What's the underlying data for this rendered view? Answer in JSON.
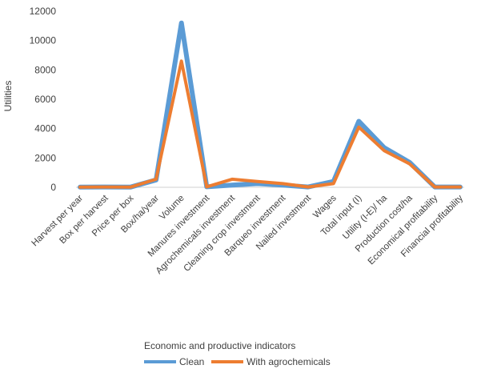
{
  "chart_data": {
    "type": "line",
    "title": "",
    "xlabel": "Economic and productive indicators",
    "ylabel": "Utilities",
    "ylim": [
      0,
      12000
    ],
    "yticks": [
      "0",
      "2000",
      "4000",
      "6000",
      "8000",
      "10000",
      "12000"
    ],
    "categories": [
      "Harvest per year",
      "Box per harvest",
      "Price per box",
      "Box/ha/year",
      "Volume",
      "Manures investment",
      "Agrochemicals investment",
      "Cleaning crop investment",
      "Barqueo investment",
      "Nailed investment",
      "Wages",
      "Total input (I)",
      "Utility (I-E)/ ha",
      "Production cost/ha",
      "Economical profitability",
      "Financial profitability"
    ],
    "series": [
      {
        "name": "Clean",
        "color": "#5b9bd5",
        "values": [
          10,
          20,
          15,
          500,
          11200,
          30,
          150,
          250,
          150,
          20,
          400,
          4500,
          2700,
          1700,
          20,
          20
        ]
      },
      {
        "name": "With agrochemicals",
        "color": "#ed7d31",
        "values": [
          10,
          20,
          15,
          550,
          8600,
          30,
          550,
          400,
          250,
          20,
          250,
          4100,
          2500,
          1600,
          20,
          20
        ]
      }
    ],
    "grid": false,
    "legend_position": "bottom"
  }
}
